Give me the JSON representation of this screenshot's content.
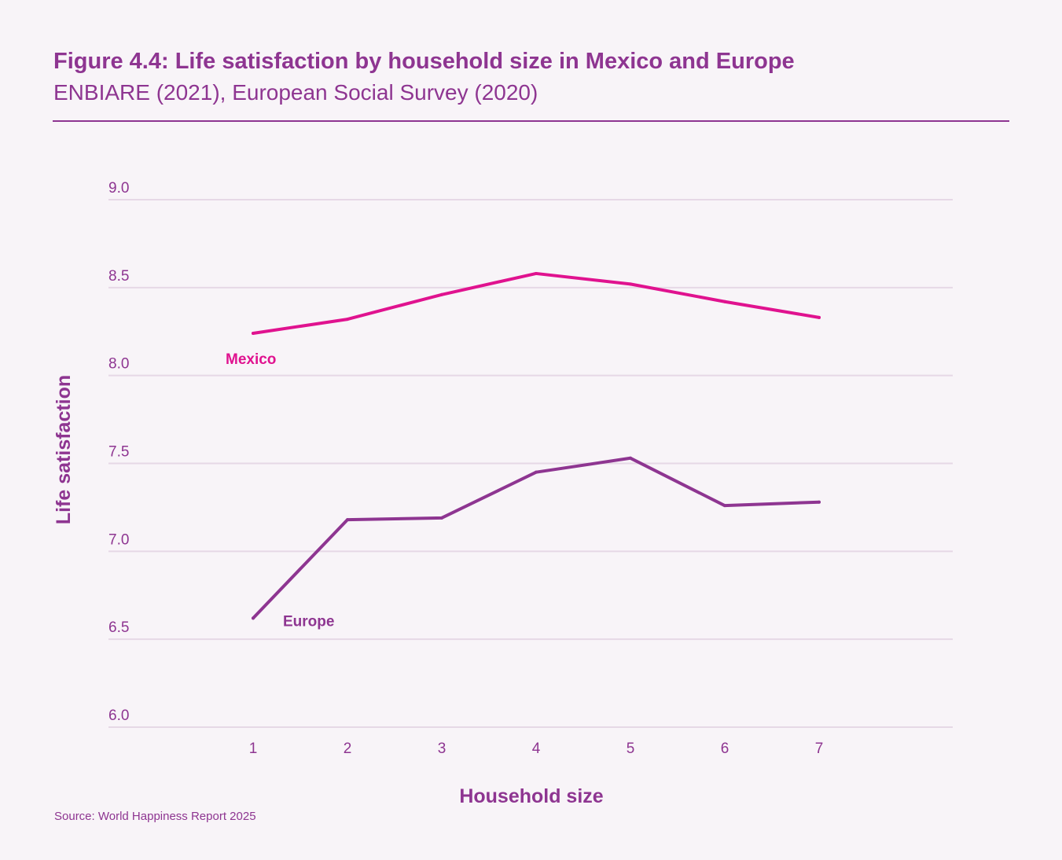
{
  "header": {
    "title": "Figure 4.4: Life satisfaction by household size in Mexico and Europe",
    "subtitle": "ENBIARE (2021), European Social Survey (2020)"
  },
  "footer": {
    "source": "Source: World Happiness Report 2025"
  },
  "colors": {
    "mexico": "#e0128f",
    "europe": "#8e3591",
    "grid": "#e6d8e6",
    "text": "#8e3591"
  },
  "chart_data": {
    "type": "line",
    "title": "Figure 4.4: Life satisfaction by household size in Mexico and Europe",
    "subtitle": "ENBIARE (2021), European Social Survey (2020)",
    "xlabel": "Household size",
    "ylabel": "Life satisfaction",
    "x": [
      1,
      2,
      3,
      4,
      5,
      6,
      7
    ],
    "x_tick_labels": [
      "1",
      "2",
      "3",
      "4",
      "5",
      "6",
      "7"
    ],
    "y_tick_labels": [
      "6.0",
      "6.5",
      "7.0",
      "7.5",
      "8.0",
      "8.5",
      "9.0"
    ],
    "y_ticks": [
      6.0,
      6.5,
      7.0,
      7.5,
      8.0,
      8.5,
      9.0
    ],
    "ylim": [
      6.0,
      9.0
    ],
    "grid": true,
    "legend": "inline labels",
    "series": [
      {
        "name": "Mexico",
        "color": "#e0128f",
        "values": [
          8.24,
          8.32,
          8.46,
          8.58,
          8.52,
          8.42,
          8.33
        ]
      },
      {
        "name": "Europe",
        "color": "#8e3591",
        "values": [
          6.62,
          7.18,
          7.19,
          7.45,
          7.53,
          7.26,
          7.28
        ]
      }
    ]
  }
}
